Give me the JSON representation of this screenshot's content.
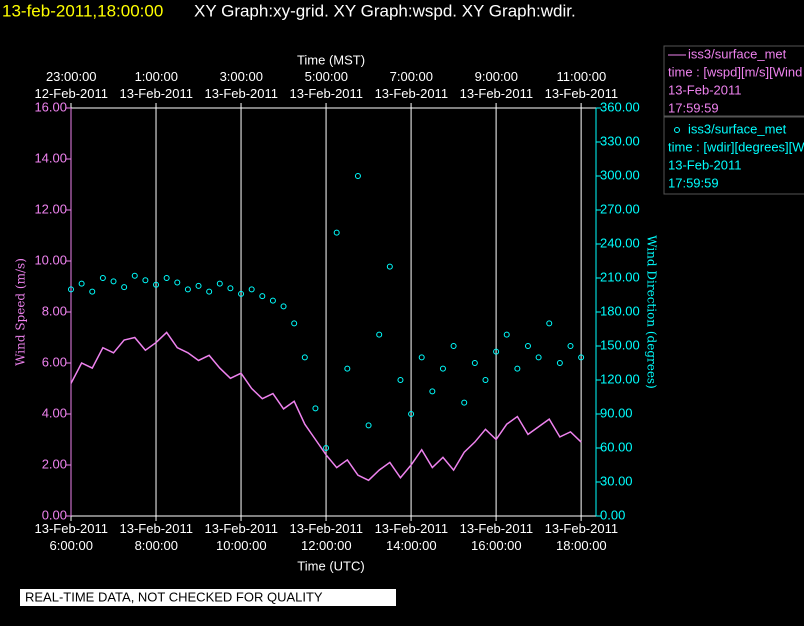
{
  "chart_data": {
    "type": "line",
    "header": "13-feb-2011,18:00:00",
    "title": "XY Graph:xy-grid.  XY Graph:wspd.  XY Graph:wdir.",
    "xlabel": "Time (UTC)",
    "x2label": "Time (MST)",
    "ylabel": "Wind Speed (m/s)",
    "y2label": "Wind Direction (degrees)",
    "footer": "REAL-TIME DATA, NOT CHECKED FOR QUALITY",
    "xlim": [
      "2011-02-13T06:00Z",
      "2011-02-13T18:21Z"
    ],
    "xticks": [
      {
        "value": "2011-02-13T06:00Z",
        "label": "13-Feb-2011\n6:00:00"
      },
      {
        "value": "2011-02-13T08:00Z",
        "label": "13-Feb-2011\n8:00:00"
      },
      {
        "value": "2011-02-13T10:00Z",
        "label": "13-Feb-2011\n10:00:00"
      },
      {
        "value": "2011-02-13T12:00Z",
        "label": "13-Feb-2011\n12:00:00"
      },
      {
        "value": "2011-02-13T14:00Z",
        "label": "13-Feb-2011\n14:00:00"
      },
      {
        "value": "2011-02-13T16:00Z",
        "label": "13-Feb-2011\n16:00:00"
      },
      {
        "value": "2011-02-13T18:00Z",
        "label": "13-Feb-2011\n18:00:00"
      }
    ],
    "x2ticks": [
      {
        "value": "2011-02-12T23:00-07:00",
        "label": "23:00:00\n12-Feb-2011"
      },
      {
        "value": "2011-02-13T01:00-07:00",
        "label": "1:00:00\n13-Feb-2011"
      },
      {
        "value": "2011-02-13T03:00-07:00",
        "label": "3:00:00\n13-Feb-2011"
      },
      {
        "value": "2011-02-13T05:00-07:00",
        "label": "5:00:00\n13-Feb-2011"
      },
      {
        "value": "2011-02-13T07:00-07:00",
        "label": "7:00:00\n13-Feb-2011"
      },
      {
        "value": "2011-02-13T09:00-07:00",
        "label": "9:00:00\n13-Feb-2011"
      },
      {
        "value": "2011-02-13T11:00-07:00",
        "label": "11:00:00\n13-Feb-2011"
      }
    ],
    "ylim": [
      0,
      16
    ],
    "yticks": [
      {
        "value": 0,
        "label": "0.00"
      },
      {
        "value": 2,
        "label": "2.00"
      },
      {
        "value": 4,
        "label": "4.00"
      },
      {
        "value": 6,
        "label": "6.00"
      },
      {
        "value": 8,
        "label": "8.00"
      },
      {
        "value": 10,
        "label": "10.00"
      },
      {
        "value": 12,
        "label": "12.00"
      },
      {
        "value": 14,
        "label": "14.00"
      },
      {
        "value": 16,
        "label": "16.00"
      }
    ],
    "y2lim": [
      0,
      360
    ],
    "y2ticks": [
      {
        "value": 0,
        "label": "0.00"
      },
      {
        "value": 30,
        "label": "30.00"
      },
      {
        "value": 60,
        "label": "60.00"
      },
      {
        "value": 90,
        "label": "90.00"
      },
      {
        "value": 120,
        "label": "120.00"
      },
      {
        "value": 150,
        "label": "150.00"
      },
      {
        "value": 180,
        "label": "180.00"
      },
      {
        "value": 210,
        "label": "210.00"
      },
      {
        "value": 240,
        "label": "240.00"
      },
      {
        "value": 270,
        "label": "270.00"
      },
      {
        "value": 300,
        "label": "300.00"
      },
      {
        "value": 330,
        "label": "330.00"
      },
      {
        "value": 360,
        "label": "360.00"
      }
    ],
    "grid": true,
    "x": [
      "2011-02-13T06:00Z",
      "2011-02-13T06:15Z",
      "2011-02-13T06:30Z",
      "2011-02-13T06:45Z",
      "2011-02-13T07:00Z",
      "2011-02-13T07:15Z",
      "2011-02-13T07:30Z",
      "2011-02-13T07:45Z",
      "2011-02-13T08:00Z",
      "2011-02-13T08:15Z",
      "2011-02-13T08:30Z",
      "2011-02-13T08:45Z",
      "2011-02-13T09:00Z",
      "2011-02-13T09:15Z",
      "2011-02-13T09:30Z",
      "2011-02-13T09:45Z",
      "2011-02-13T10:00Z",
      "2011-02-13T10:15Z",
      "2011-02-13T10:30Z",
      "2011-02-13T10:45Z",
      "2011-02-13T11:00Z",
      "2011-02-13T11:15Z",
      "2011-02-13T11:30Z",
      "2011-02-13T11:45Z",
      "2011-02-13T12:00Z",
      "2011-02-13T12:15Z",
      "2011-02-13T12:30Z",
      "2011-02-13T12:45Z",
      "2011-02-13T13:00Z",
      "2011-02-13T13:15Z",
      "2011-02-13T13:30Z",
      "2011-02-13T13:45Z",
      "2011-02-13T14:00Z",
      "2011-02-13T14:15Z",
      "2011-02-13T14:30Z",
      "2011-02-13T14:45Z",
      "2011-02-13T15:00Z",
      "2011-02-13T15:15Z",
      "2011-02-13T15:30Z",
      "2011-02-13T15:45Z",
      "2011-02-13T16:00Z",
      "2011-02-13T16:15Z",
      "2011-02-13T16:30Z",
      "2011-02-13T16:45Z",
      "2011-02-13T17:00Z",
      "2011-02-13T17:15Z",
      "2011-02-13T17:30Z",
      "2011-02-13T17:45Z",
      "2011-02-13T18:00Z"
    ],
    "series": [
      {
        "name": "iss3/surface_met",
        "legend": [
          "time : [wspd][m/s][Wind",
          "13-Feb-2011",
          "17:59:59"
        ],
        "color": "#ee82ee",
        "marker": "line",
        "values": [
          5.2,
          6.0,
          5.8,
          6.6,
          6.4,
          6.9,
          7.0,
          6.5,
          6.8,
          7.2,
          6.6,
          6.4,
          6.1,
          6.3,
          5.8,
          5.4,
          5.6,
          5.0,
          4.6,
          4.8,
          4.2,
          4.5,
          3.6,
          3.0,
          2.4,
          1.9,
          2.2,
          1.6,
          1.4,
          1.8,
          2.1,
          1.5,
          2.0,
          2.6,
          1.9,
          2.3,
          1.8,
          2.5,
          2.9,
          3.4,
          3.0,
          3.6,
          3.9,
          3.2,
          3.5,
          3.8,
          3.1,
          3.3,
          2.9
        ]
      },
      {
        "name": "iss3/surface_met",
        "legend": [
          "time : [wdir][degrees][W",
          "13-Feb-2011",
          "17:59:59"
        ],
        "color": "#00ffff",
        "marker": "circle",
        "axis": "y2",
        "values": [
          200,
          205,
          198,
          210,
          207,
          202,
          212,
          208,
          204,
          210,
          206,
          200,
          203,
          198,
          205,
          201,
          196,
          200,
          194,
          190,
          185,
          170,
          140,
          95,
          60,
          250,
          130,
          300,
          80,
          160,
          220,
          120,
          90,
          140,
          110,
          130,
          150,
          100,
          135,
          120,
          145,
          160,
          130,
          150,
          140,
          170,
          135,
          150,
          140
        ]
      }
    ]
  }
}
